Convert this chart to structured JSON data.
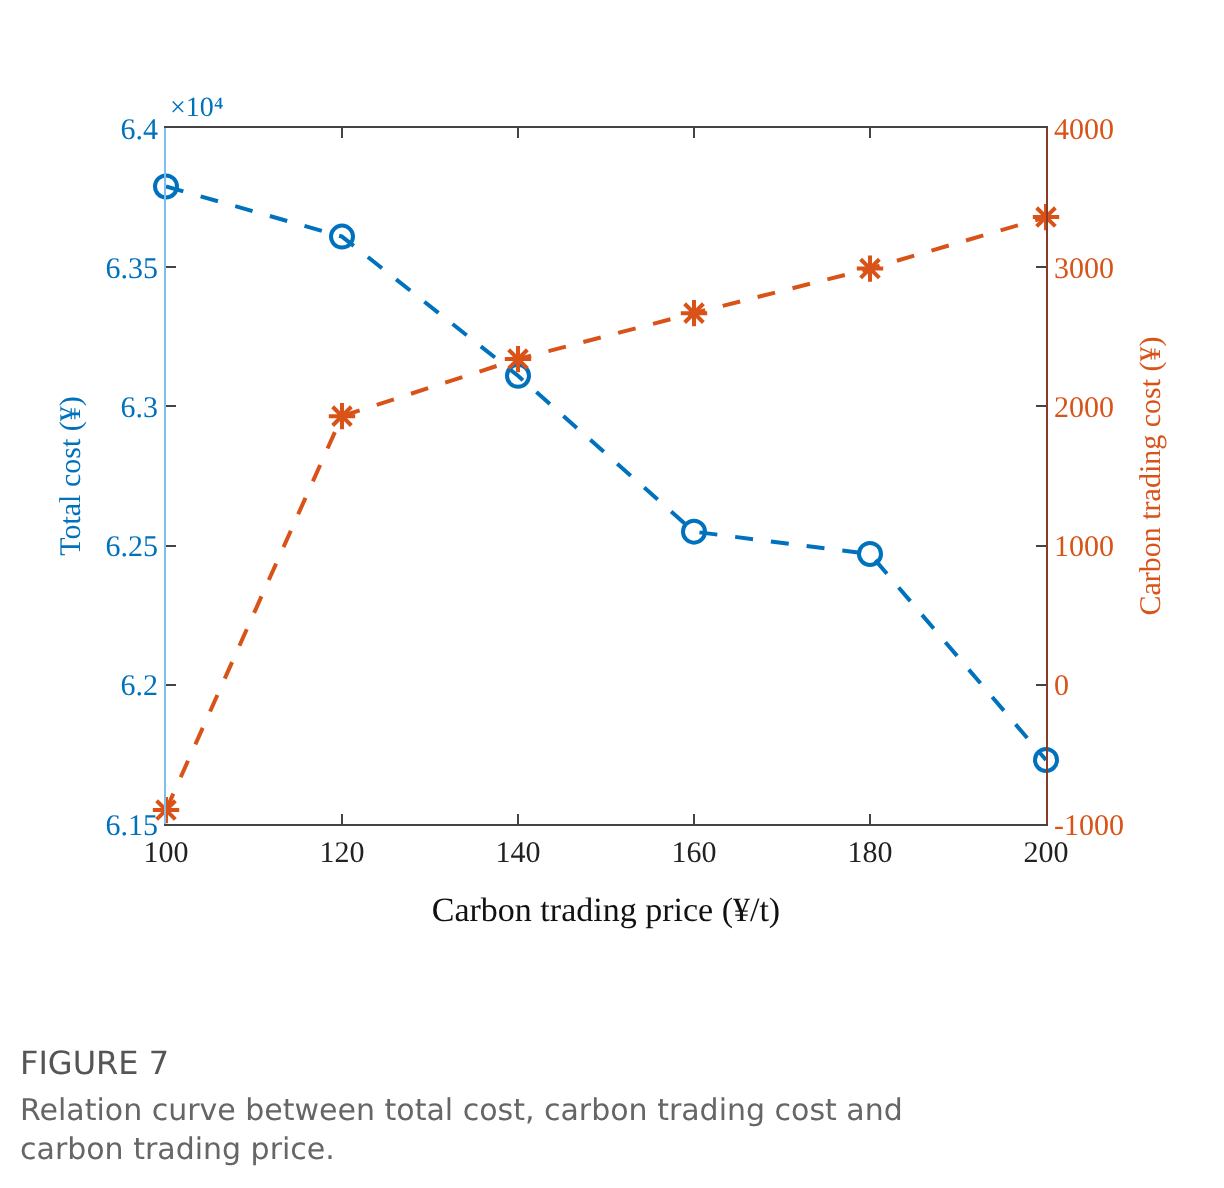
{
  "chart_data": {
    "type": "line",
    "x": [
      100,
      120,
      140,
      160,
      180,
      200
    ],
    "xlabel": "Carbon trading price (¥/t)",
    "ylabel": "Total cost (¥)",
    "y2label": "Carbon trading cost (¥)",
    "series": [
      {
        "color": "#0072bd",
        "marker": "circle",
        "line_style": "dashed",
        "values": [
          6.379,
          6.361,
          6.311,
          6.255,
          6.247,
          6.173
        ]
      },
      {
        "color": "#d95319",
        "marker": "cross",
        "line_style": "dashed",
        "axis": "y2",
        "values": [
          -900,
          1930,
          2340,
          2670,
          2990,
          3360
        ]
      }
    ],
    "xlim": [
      100,
      200
    ],
    "xticks": [
      100,
      120,
      140,
      160,
      180,
      200
    ],
    "ylim": [
      6.15,
      6.4
    ],
    "yticks": [
      6.15,
      6.2,
      6.25,
      6.3,
      6.35,
      6.4
    ],
    "y2lim": [
      -1000,
      4000
    ],
    "y2ticks": [
      -1000,
      0,
      1000,
      2000,
      3000,
      4000
    ],
    "grid": false,
    "legend": false,
    "annotations": [
      "×10⁴",
      "FIGURE 7",
      "Relation curve between total cost, carbon trading cost and carbon trading price."
    ]
  }
}
